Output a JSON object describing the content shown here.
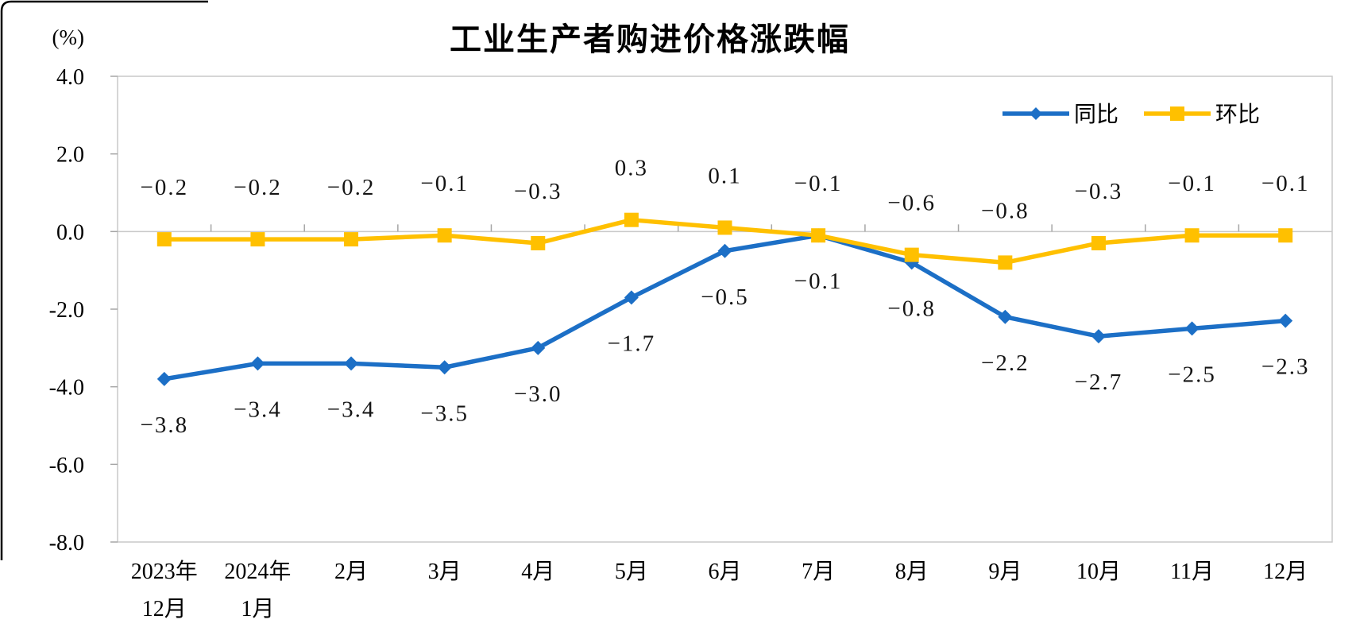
{
  "page": {
    "background": "#ffffff",
    "decor_border_color": "#000000"
  },
  "chart_data": {
    "type": "line",
    "title": "工业生产者购进价格涨跌幅",
    "unit_label": "(%)",
    "legend_position": "top-right",
    "grid": "zero-line-only",
    "axis_color": "#c9c9c9",
    "tick_color": "#a6a6a6",
    "text_color": "#000000",
    "ylim": [
      -8.0,
      4.0
    ],
    "y_ticks": [
      4.0,
      2.0,
      0.0,
      -2.0,
      -4.0,
      -6.0,
      -8.0
    ],
    "y_tick_labels": [
      "4.0",
      "2.0",
      "0.0",
      "-2.0",
      "-4.0",
      "-6.0",
      "-8.0"
    ],
    "categories": [
      [
        "2023年",
        "12月"
      ],
      [
        "2024年",
        "1月"
      ],
      [
        "2月"
      ],
      [
        "3月"
      ],
      [
        "4月"
      ],
      [
        "5月"
      ],
      [
        "6月"
      ],
      [
        "7月"
      ],
      [
        "8月"
      ],
      [
        "9月"
      ],
      [
        "10月"
      ],
      [
        "11月"
      ],
      [
        "12月"
      ]
    ],
    "series": [
      {
        "name": "同比",
        "color": "#1c6fc6",
        "marker": "diamond",
        "label_side": "below",
        "values": [
          -3.8,
          -3.4,
          -3.4,
          -3.5,
          -3.0,
          -1.7,
          -0.5,
          -0.1,
          -0.8,
          -2.2,
          -2.7,
          -2.5,
          -2.3
        ],
        "labels": [
          "−3.8",
          "−3.4",
          "−3.4",
          "−3.5",
          "−3.0",
          "−1.7",
          "−0.5",
          "−0.1",
          "−0.8",
          "−2.2",
          "−2.7",
          "−2.5",
          "−2.3"
        ]
      },
      {
        "name": "环比",
        "color": "#ffc000",
        "marker": "square",
        "label_side": "above",
        "values": [
          -0.2,
          -0.2,
          -0.2,
          -0.1,
          -0.3,
          0.3,
          0.1,
          -0.1,
          -0.6,
          -0.8,
          -0.3,
          -0.1,
          -0.1
        ],
        "labels": [
          "−0.2",
          "−0.2",
          "−0.2",
          "−0.1",
          "−0.3",
          "0.3",
          "0.1",
          "−0.1",
          "−0.6",
          "−0.8",
          "−0.3",
          "−0.1",
          "−0.1"
        ]
      }
    ]
  }
}
